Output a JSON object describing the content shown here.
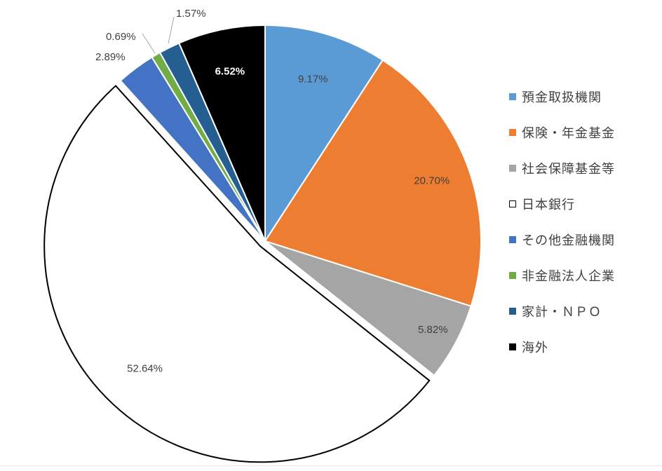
{
  "chart_data": {
    "type": "pie",
    "title": "",
    "slices": [
      {
        "name": "預金取扱機関",
        "value": 9.17,
        "label": "9.17%",
        "color": "#5b9bd5",
        "label_color": "#404040"
      },
      {
        "name": "保険・年金基金",
        "value": 20.7,
        "label": "20.70%",
        "color": "#ed7d31",
        "label_color": "#404040"
      },
      {
        "name": "社会保障基金等",
        "value": 5.82,
        "label": "5.82%",
        "color": "#a5a5a5",
        "label_color": "#404040"
      },
      {
        "name": "日本銀行",
        "value": 52.64,
        "label": "52.64%",
        "color": "#ffffff",
        "label_color": "#404040"
      },
      {
        "name": "その他金融機関",
        "value": 2.89,
        "label": "2.89%",
        "color": "#4472c4",
        "label_color": "#404040"
      },
      {
        "name": "非金融法人企業",
        "value": 0.69,
        "label": "0.69%",
        "color": "#70ad47",
        "label_color": "#404040"
      },
      {
        "name": "家計・ＮＰＯ",
        "value": 1.57,
        "label": "1.57%",
        "color": "#255e91",
        "label_color": "#404040"
      },
      {
        "name": "海外",
        "value": 6.52,
        "label": "6.52%",
        "color": "#000000",
        "label_color": "#ffffff"
      }
    ],
    "legend_position": "right",
    "start_angle": "12 o'clock",
    "direction": "clockwise",
    "outlined_slice": "日本銀行"
  }
}
